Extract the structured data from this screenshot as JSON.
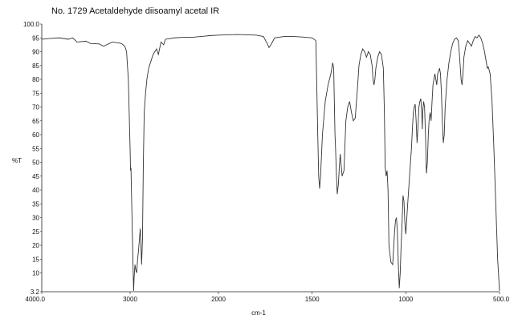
{
  "chart_data": {
    "type": "line",
    "title": "No. 1729 Acetaldehyde diisoamyl acetal IR",
    "xlabel": "cm-1",
    "ylabel": "%T",
    "xlim": [
      4000.0,
      500.0
    ],
    "ylim": [
      3.2,
      100.0
    ],
    "x_reversed": true,
    "x_scale": "piecewise-linear: 4000-2000 and 2000-500 at different cm-1 per unit length",
    "grid": false,
    "line_color": "#333333",
    "x_ticks": [
      "4000.0",
      "3000",
      "2000",
      "1500",
      "1000",
      "500.0"
    ],
    "y_ticks": [
      "100.0",
      "95",
      "90",
      "85",
      "80",
      "75",
      "70",
      "65",
      "60",
      "55",
      "50",
      "45",
      "40",
      "35",
      "30",
      "25",
      "20",
      "15",
      "10",
      "3.2"
    ],
    "series": [
      {
        "points": [
          [
            4000,
            94.5
          ],
          [
            3900,
            94.8
          ],
          [
            3800,
            95.0
          ],
          [
            3700,
            94.5
          ],
          [
            3650,
            95.0
          ],
          [
            3600,
            93.5
          ],
          [
            3500,
            93.8
          ],
          [
            3450,
            93.0
          ],
          [
            3350,
            92.8
          ],
          [
            3300,
            92.0
          ],
          [
            3200,
            93.5
          ],
          [
            3100,
            93.0
          ],
          [
            3060,
            92.0
          ],
          [
            3040,
            90.0
          ],
          [
            3020,
            80.0
          ],
          [
            3000,
            55.0
          ],
          [
            2995,
            47.0
          ],
          [
            2990,
            48.0
          ],
          [
            2985,
            40.0
          ],
          [
            2975,
            25.0
          ],
          [
            2965,
            10.0
          ],
          [
            2960,
            3.5
          ],
          [
            2955,
            8.0
          ],
          [
            2945,
            13.0
          ],
          [
            2935,
            11.0
          ],
          [
            2925,
            10.0
          ],
          [
            2915,
            15.0
          ],
          [
            2905,
            18.0
          ],
          [
            2895,
            22.0
          ],
          [
            2885,
            26.0
          ],
          [
            2875,
            18.0
          ],
          [
            2870,
            13.0
          ],
          [
            2860,
            22.0
          ],
          [
            2850,
            50.0
          ],
          [
            2840,
            68.0
          ],
          [
            2825,
            75.0
          ],
          [
            2810,
            80.0
          ],
          [
            2790,
            84.0
          ],
          [
            2770,
            86.0
          ],
          [
            2740,
            89.0
          ],
          [
            2700,
            91.0
          ],
          [
            2680,
            89.0
          ],
          [
            2650,
            93.5
          ],
          [
            2620,
            92.5
          ],
          [
            2600,
            94.5
          ],
          [
            2500,
            95.0
          ],
          [
            2400,
            95.2
          ],
          [
            2300,
            95.2
          ],
          [
            2200,
            95.5
          ],
          [
            2100,
            95.8
          ],
          [
            2000,
            96.0
          ],
          [
            1900,
            96.2
          ],
          [
            1800,
            96.0
          ],
          [
            1760,
            95.5
          ],
          [
            1740,
            93.0
          ],
          [
            1730,
            91.5
          ],
          [
            1720,
            92.5
          ],
          [
            1700,
            95.0
          ],
          [
            1650,
            95.5
          ],
          [
            1600,
            95.5
          ],
          [
            1550,
            95.3
          ],
          [
            1500,
            95.0
          ],
          [
            1480,
            94.0
          ],
          [
            1470,
            60.0
          ],
          [
            1465,
            45.0
          ],
          [
            1460,
            40.5
          ],
          [
            1455,
            45.0
          ],
          [
            1445,
            60.0
          ],
          [
            1430,
            72.0
          ],
          [
            1415,
            78.0
          ],
          [
            1400,
            82.0
          ],
          [
            1390,
            86.0
          ],
          [
            1385,
            84.0
          ],
          [
            1378,
            60.0
          ],
          [
            1375,
            55.0
          ],
          [
            1370,
            45.0
          ],
          [
            1366,
            38.5
          ],
          [
            1360,
            42.0
          ],
          [
            1355,
            48.0
          ],
          [
            1350,
            53.0
          ],
          [
            1340,
            45.0
          ],
          [
            1330,
            47.0
          ],
          [
            1320,
            65.0
          ],
          [
            1310,
            70.0
          ],
          [
            1300,
            72.0
          ],
          [
            1290,
            68.0
          ],
          [
            1280,
            65.0
          ],
          [
            1270,
            66.0
          ],
          [
            1260,
            75.0
          ],
          [
            1250,
            85.0
          ],
          [
            1240,
            89.0
          ],
          [
            1230,
            91.0
          ],
          [
            1220,
            90.0
          ],
          [
            1210,
            88.0
          ],
          [
            1200,
            90.0
          ],
          [
            1190,
            89.0
          ],
          [
            1180,
            85.0
          ],
          [
            1175,
            80.0
          ],
          [
            1170,
            78.0
          ],
          [
            1165,
            80.0
          ],
          [
            1160,
            84.0
          ],
          [
            1150,
            88.0
          ],
          [
            1140,
            90.0
          ],
          [
            1130,
            89.0
          ],
          [
            1120,
            84.0
          ],
          [
            1115,
            70.0
          ],
          [
            1110,
            48.0
          ],
          [
            1105,
            45.0
          ],
          [
            1100,
            47.0
          ],
          [
            1095,
            40.0
          ],
          [
            1090,
            20.0
          ],
          [
            1080,
            14.0
          ],
          [
            1070,
            13.0
          ],
          [
            1060,
            25.0
          ],
          [
            1055,
            29.0
          ],
          [
            1050,
            30.0
          ],
          [
            1045,
            25.0
          ],
          [
            1040,
            13.0
          ],
          [
            1035,
            4.5
          ],
          [
            1030,
            10.0
          ],
          [
            1025,
            20.0
          ],
          [
            1020,
            28.0
          ],
          [
            1015,
            38.0
          ],
          [
            1010,
            36.0
          ],
          [
            1005,
            28.0
          ],
          [
            1000,
            24.0
          ],
          [
            990,
            35.0
          ],
          [
            980,
            45.0
          ],
          [
            970,
            55.0
          ],
          [
            965,
            62.0
          ],
          [
            960,
            68.0
          ],
          [
            955,
            70.0
          ],
          [
            950,
            71.0
          ],
          [
            945,
            65.0
          ],
          [
            940,
            57.0
          ],
          [
            935,
            63.0
          ],
          [
            930,
            70.0
          ],
          [
            925,
            72.0
          ],
          [
            920,
            73.0
          ],
          [
            915,
            68.0
          ],
          [
            912,
            62.0
          ],
          [
            910,
            68.0
          ],
          [
            905,
            72.0
          ],
          [
            900,
            70.0
          ],
          [
            895,
            60.0
          ],
          [
            890,
            46.0
          ],
          [
            885,
            50.0
          ],
          [
            880,
            60.0
          ],
          [
            875,
            66.0
          ],
          [
            870,
            68.0
          ],
          [
            865,
            65.0
          ],
          [
            860,
            72.0
          ],
          [
            855,
            78.0
          ],
          [
            850,
            80.0
          ],
          [
            845,
            82.0
          ],
          [
            840,
            80.0
          ],
          [
            835,
            78.0
          ],
          [
            830,
            82.0
          ],
          [
            825,
            83.0
          ],
          [
            820,
            84.0
          ],
          [
            815,
            82.0
          ],
          [
            810,
            75.0
          ],
          [
            805,
            65.0
          ],
          [
            800,
            57.0
          ],
          [
            795,
            60.0
          ],
          [
            790,
            70.0
          ],
          [
            780,
            80.0
          ],
          [
            770,
            86.0
          ],
          [
            760,
            90.0
          ],
          [
            750,
            93.0
          ],
          [
            740,
            94.5
          ],
          [
            730,
            95.0
          ],
          [
            720,
            94.0
          ],
          [
            715,
            90.0
          ],
          [
            710,
            85.0
          ],
          [
            705,
            80.0
          ],
          [
            700,
            78.0
          ],
          [
            695,
            82.0
          ],
          [
            690,
            88.0
          ],
          [
            680,
            92.0
          ],
          [
            670,
            94.0
          ],
          [
            660,
            93.0
          ],
          [
            650,
            92.0
          ],
          [
            640,
            94.0
          ],
          [
            630,
            95.5
          ],
          [
            620,
            95.0
          ],
          [
            610,
            96.0
          ],
          [
            600,
            95.0
          ],
          [
            590,
            93.0
          ],
          [
            580,
            90.0
          ],
          [
            570,
            86.0
          ],
          [
            565,
            84.0
          ],
          [
            560,
            84.5
          ],
          [
            550,
            82.0
          ],
          [
            540,
            72.0
          ],
          [
            530,
            55.0
          ],
          [
            520,
            35.0
          ],
          [
            510,
            15.0
          ],
          [
            500,
            3.5
          ]
        ]
      }
    ]
  }
}
